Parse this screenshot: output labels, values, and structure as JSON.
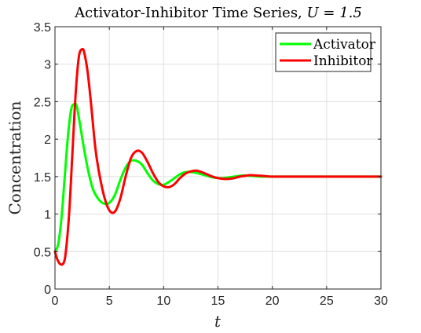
{
  "chart_data": {
    "type": "line",
    "title": "Activator-Inhibitor Time Series, ",
    "title_math": "U = 1.5",
    "xlabel": "t",
    "ylabel": "Concentration",
    "xlim": [
      0,
      30
    ],
    "ylim": [
      0,
      3.5
    ],
    "xticks": [
      0,
      5,
      10,
      15,
      20,
      25,
      30
    ],
    "xtick_labels": [
      "0",
      "5",
      "10",
      "15",
      "20",
      "25",
      "30"
    ],
    "yticks": [
      0,
      0.5,
      1,
      1.5,
      2,
      2.5,
      3,
      3.5
    ],
    "ytick_labels": [
      "0",
      "0.5",
      "1",
      "1.5",
      "2",
      "2.5",
      "3",
      "3.5"
    ],
    "grid": true,
    "legend_position": "top-right",
    "series": [
      {
        "name": "Activator",
        "color": "#00ff00",
        "x": [
          0,
          0.3,
          0.6,
          0.9,
          1.2,
          1.5,
          1.8,
          2.0,
          2.3,
          2.7,
          3.1,
          3.5,
          4.0,
          4.5,
          5.0,
          5.5,
          6.0,
          6.5,
          7.0,
          7.5,
          8.0,
          8.5,
          9.0,
          9.5,
          10.0,
          10.5,
          11.0,
          11.5,
          12.0,
          12.5,
          13.0,
          13.5,
          14.0,
          14.5,
          15.0,
          15.5,
          16.0,
          16.5,
          17.0,
          17.5,
          18.0,
          18.5,
          19.0,
          20.0,
          21.0,
          22.0,
          23.0,
          24.0,
          25.0,
          26.0,
          27.0,
          28.0,
          29.0,
          30.0
        ],
        "y": [
          0.5,
          0.6,
          0.95,
          1.5,
          2.05,
          2.4,
          2.47,
          2.44,
          2.2,
          1.85,
          1.55,
          1.33,
          1.2,
          1.14,
          1.15,
          1.25,
          1.45,
          1.62,
          1.71,
          1.71,
          1.66,
          1.55,
          1.45,
          1.4,
          1.39,
          1.43,
          1.48,
          1.53,
          1.56,
          1.56,
          1.55,
          1.53,
          1.51,
          1.49,
          1.48,
          1.48,
          1.49,
          1.5,
          1.51,
          1.515,
          1.51,
          1.505,
          1.5,
          1.5,
          1.5,
          1.5,
          1.5,
          1.5,
          1.5,
          1.5,
          1.5,
          1.5,
          1.5,
          1.5
        ]
      },
      {
        "name": "Inhibitor",
        "color": "#ff0000",
        "x": [
          0,
          0.2,
          0.5,
          0.8,
          1.0,
          1.3,
          1.6,
          1.9,
          2.2,
          2.5,
          2.7,
          3.0,
          3.3,
          3.7,
          4.0,
          4.5,
          5.0,
          5.5,
          6.0,
          6.5,
          7.0,
          7.5,
          8.0,
          8.5,
          9.0,
          9.5,
          10.0,
          10.5,
          11.0,
          11.5,
          12.0,
          12.5,
          13.0,
          13.5,
          14.0,
          14.5,
          15.0,
          15.5,
          16.0,
          16.5,
          17.0,
          17.5,
          18.0,
          18.5,
          19.0,
          20.0,
          21.0,
          22.0,
          23.0,
          24.0,
          25.0,
          26.0,
          27.0,
          28.0,
          29.0,
          30.0
        ],
        "y": [
          0.5,
          0.4,
          0.33,
          0.35,
          0.5,
          1.0,
          1.8,
          2.6,
          3.1,
          3.2,
          3.15,
          2.9,
          2.5,
          1.9,
          1.6,
          1.25,
          1.05,
          1.03,
          1.2,
          1.5,
          1.75,
          1.84,
          1.82,
          1.7,
          1.55,
          1.43,
          1.37,
          1.36,
          1.4,
          1.48,
          1.54,
          1.57,
          1.58,
          1.56,
          1.53,
          1.5,
          1.48,
          1.47,
          1.47,
          1.48,
          1.5,
          1.51,
          1.52,
          1.515,
          1.51,
          1.5,
          1.5,
          1.5,
          1.5,
          1.5,
          1.5,
          1.5,
          1.5,
          1.5,
          1.5,
          1.5
        ]
      }
    ]
  }
}
